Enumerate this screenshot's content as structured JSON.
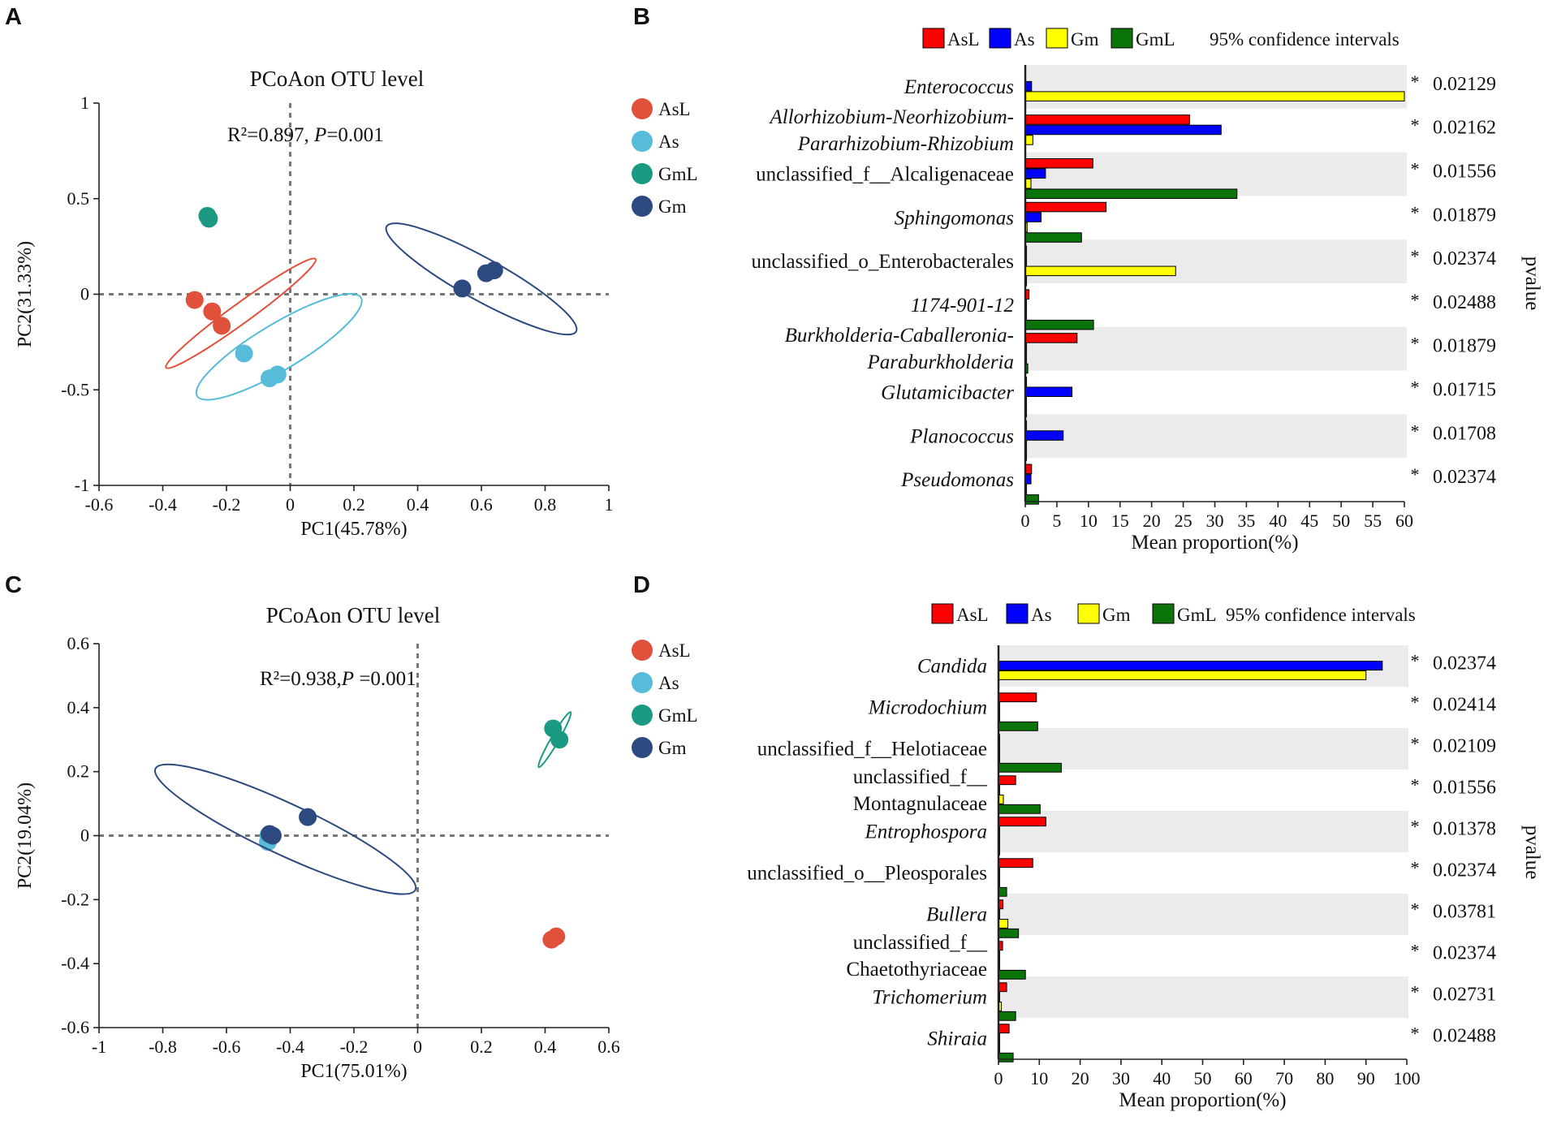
{
  "colors": {
    "AsL_scatter": "#e1503a",
    "As_scatter": "#56bcd9",
    "GmL_scatter": "#1b9a83",
    "Gm_scatter": "#2d4a80",
    "AsL_bar": "#ff0000",
    "As_bar": "#0000ff",
    "Gm_bar": "#ffff00",
    "GmL_bar": "#0a730a",
    "stripe": "#ebebeb",
    "star": "#e00000"
  },
  "panels": {
    "A": "A",
    "B": "B",
    "C": "C",
    "D": "D"
  },
  "chart_data": [
    {
      "id": "A",
      "type": "scatter",
      "title": "PCoAon OTU level",
      "annotation": {
        "r2": "R²=0.897, ",
        "p_label": "P",
        "p_value": "=0.001"
      },
      "xlabel": "PC1(45.78%)",
      "ylabel": "PC2(31.33%)",
      "xlim": [
        -0.6,
        1
      ],
      "ylim": [
        -1,
        1
      ],
      "xticks": [
        -0.6,
        -0.4,
        -0.2,
        0,
        0.2,
        0.4,
        0.6,
        0.8,
        1
      ],
      "yticks": [
        -1,
        -0.5,
        0,
        0.5,
        1
      ],
      "xtick_labels": [
        "-0.6",
        "-0.4",
        "-0.2",
        "0",
        "0.2",
        "0.4",
        "0.6",
        "0.8",
        "1"
      ],
      "ytick_labels": [
        "-1",
        "-0.5",
        "0",
        "0.5",
        "1"
      ],
      "legend": [
        "AsL",
        "As",
        "GmL",
        "Gm"
      ],
      "series": [
        {
          "name": "AsL",
          "points": [
            [
              -0.3,
              -0.03
            ],
            [
              -0.245,
              -0.09
            ],
            [
              -0.215,
              -0.165
            ]
          ],
          "ellipse": {
            "cx": -0.155,
            "cy": -0.1,
            "rx": 0.58,
            "ry": 0.026,
            "angle": -36
          }
        },
        {
          "name": "As",
          "points": [
            [
              -0.145,
              -0.31
            ],
            [
              -0.065,
              -0.44
            ],
            [
              -0.04,
              -0.42
            ]
          ],
          "ellipse": {
            "cx": -0.035,
            "cy": -0.275,
            "rx": 0.6,
            "ry": 0.06,
            "angle": -31
          }
        },
        {
          "name": "GmL",
          "points": [
            [
              -0.26,
              0.41
            ],
            [
              -0.255,
              0.395
            ]
          ],
          "ellipse": {
            "cx": -0.26,
            "cy": 0.41,
            "rx": 0.045,
            "ry": 0.015,
            "angle": -40
          }
        },
        {
          "name": "Gm",
          "points": [
            [
              0.54,
              0.03
            ],
            [
              0.615,
              0.11
            ],
            [
              0.64,
              0.125
            ]
          ],
          "ellipse": {
            "cx": 0.6,
            "cy": 0.08,
            "rx": 0.68,
            "ry": 0.055,
            "angle": 29
          }
        }
      ]
    },
    {
      "id": "B",
      "type": "bar",
      "xlabel": "Mean proportion(%)",
      "xlim": [
        0,
        60
      ],
      "xticks": [
        0,
        5,
        10,
        15,
        20,
        25,
        30,
        35,
        40,
        45,
        50,
        55,
        60
      ],
      "xtick_labels": [
        "0",
        "5",
        "10",
        "15",
        "20",
        "25",
        "30",
        "35",
        "40",
        "45",
        "50",
        "55",
        "60"
      ],
      "legend": [
        "AsL",
        "As",
        "Gm",
        "GmL"
      ],
      "legend_ci": "95% confidence intervals",
      "series_names": [
        "AsL",
        "As",
        "Gm",
        "GmL"
      ],
      "right_label": "pvalue",
      "categories": [
        {
          "lines": [
            "Enterococcus"
          ],
          "italic": true,
          "values": [
            0,
            1.0,
            60,
            0
          ],
          "p": "0.02129",
          "star": "*"
        },
        {
          "lines": [
            "Allorhizobium-Neorhizobium-",
            "Pararhizobium-Rhizobium"
          ],
          "italic": true,
          "values": [
            26,
            31,
            1.2,
            0
          ],
          "p": "0.02162",
          "star": "*"
        },
        {
          "lines": [
            "unclassified_f__Alcaligenaceae"
          ],
          "italic": false,
          "values": [
            10.7,
            3.2,
            0.9,
            33.5
          ],
          "p": "0.01556",
          "star": "*"
        },
        {
          "lines": [
            "Sphingomonas"
          ],
          "italic": true,
          "values": [
            12.8,
            2.5,
            0.3,
            8.9
          ],
          "p": "0.01879",
          "star": "*"
        },
        {
          "lines": [
            "unclassified_o_Enterobacterales"
          ],
          "italic": false,
          "values": [
            0.2,
            0.2,
            23.8,
            0.2
          ],
          "p": "0.02374",
          "star": "*"
        },
        {
          "lines": [
            "1174-901-12"
          ],
          "italic": true,
          "values": [
            0.6,
            0.2,
            0.2,
            10.8
          ],
          "p": "0.02488",
          "star": "*"
        },
        {
          "lines": [
            "Burkholderia-Caballeronia-",
            "Paraburkholderia"
          ],
          "italic": true,
          "values": [
            8.2,
            0.2,
            0.2,
            0.4
          ],
          "p": "0.01879",
          "star": "*"
        },
        {
          "lines": [
            "Glutamicibacter"
          ],
          "italic": true,
          "values": [
            0.2,
            7.4,
            0.2,
            0.2
          ],
          "p": "0.01715",
          "star": "*"
        },
        {
          "lines": [
            "Planococcus"
          ],
          "italic": true,
          "values": [
            0.2,
            6.0,
            0.2,
            0.2
          ],
          "p": "0.01708",
          "star": "*"
        },
        {
          "lines": [
            "Pseudomonas"
          ],
          "italic": true,
          "values": [
            1.0,
            0.9,
            0.2,
            2.1
          ],
          "p": "0.02374",
          "star": "*"
        }
      ]
    },
    {
      "id": "C",
      "type": "scatter",
      "title": "PCoAon OTU level",
      "annotation": {
        "r2": "R²=0.938,",
        "p_label": "P",
        "p_value": " =0.001"
      },
      "xlabel": "PC1(75.01%)",
      "ylabel": "PC2(19.04%)",
      "xlim": [
        -1,
        0.6
      ],
      "ylim": [
        -0.6,
        0.6
      ],
      "xticks": [
        -1,
        -0.8,
        -0.6,
        -0.4,
        -0.2,
        0,
        0.2,
        0.4,
        0.6
      ],
      "yticks": [
        -0.6,
        -0.4,
        -0.2,
        0,
        0.2,
        0.4,
        0.6
      ],
      "xtick_labels": [
        "-1",
        "-0.8",
        "-0.6",
        "-0.4",
        "-0.2",
        "0",
        "0.2",
        "0.4",
        "0.6"
      ],
      "ytick_labels": [
        "-0.6",
        "-0.4",
        "-0.2",
        "0",
        "0.2",
        "0.4",
        "0.6"
      ],
      "legend": [
        "AsL",
        "As",
        "GmL",
        "Gm"
      ],
      "series": [
        {
          "name": "AsL",
          "points": [
            [
              0.42,
              -0.325
            ],
            [
              0.435,
              -0.315
            ]
          ],
          "ellipse": {
            "cx": 0.43,
            "cy": -0.32,
            "rx": 0.06,
            "ry": 0.008,
            "angle": -45
          }
        },
        {
          "name": "As",
          "points": [
            [
              -0.47,
              -0.02
            ],
            [
              -0.465,
              -0.005
            ]
          ],
          "ellipse": {
            "cx": -0.47,
            "cy": 0,
            "rx": 0.05,
            "ry": 0.012,
            "angle": -85
          }
        },
        {
          "name": "GmL",
          "points": [
            [
              0.425,
              0.335
            ],
            [
              0.445,
              0.3
            ]
          ],
          "ellipse": {
            "cx": 0.43,
            "cy": 0.3,
            "rx": 0.2,
            "ry": 0.006,
            "angle": -60
          }
        },
        {
          "name": "Gm",
          "points": [
            [
              -0.465,
              0.005
            ],
            [
              -0.455,
              0.0
            ],
            [
              -0.345,
              0.058
            ]
          ],
          "ellipse": {
            "cx": -0.415,
            "cy": 0.02,
            "rx": 0.9,
            "ry": 0.04,
            "angle": 25
          }
        }
      ]
    },
    {
      "id": "D",
      "type": "bar",
      "xlabel": "Mean proportion(%)",
      "xlim": [
        0,
        100
      ],
      "xticks": [
        0,
        10,
        20,
        30,
        40,
        50,
        60,
        70,
        80,
        90,
        100
      ],
      "xtick_labels": [
        "0",
        "10",
        "20",
        "30",
        "40",
        "50",
        "60",
        "70",
        "80",
        "90",
        "100"
      ],
      "legend": [
        "AsL",
        "As",
        "Gm",
        "GmL"
      ],
      "legend_ci": "95% confidence intervals",
      "series_names": [
        "AsL",
        "As",
        "Gm",
        "GmL"
      ],
      "right_label": "pvalue",
      "categories": [
        {
          "lines": [
            "Candida"
          ],
          "italic": true,
          "values": [
            0,
            94,
            90,
            0
          ],
          "p": "0.02374",
          "star": "*"
        },
        {
          "lines": [
            "Microdochium"
          ],
          "italic": true,
          "values": [
            9.3,
            0.3,
            0.3,
            9.6
          ],
          "p": "0.02414",
          "star": "*"
        },
        {
          "lines": [
            "unclassified_f__Helotiaceae"
          ],
          "italic": false,
          "values": [
            0.3,
            0.3,
            0.3,
            15.4
          ],
          "p": "0.02109",
          "star": "*"
        },
        {
          "lines": [
            "unclassified_f__",
            "Montagnulaceae"
          ],
          "italic": false,
          "values": [
            4.2,
            0.3,
            1.2,
            10.2
          ],
          "p": "0.01556",
          "star": "*"
        },
        {
          "lines": [
            "Entrophospora"
          ],
          "italic": true,
          "values": [
            11.6,
            0.3,
            0.3,
            0.3
          ],
          "p": "0.01378",
          "star": "*"
        },
        {
          "lines": [
            "unclassified_o__Pleosporales"
          ],
          "italic": false,
          "values": [
            8.4,
            0.3,
            0.3,
            2.0
          ],
          "p": "0.02374",
          "star": "*"
        },
        {
          "lines": [
            "Bullera"
          ],
          "italic": true,
          "values": [
            1.1,
            0.3,
            2.3,
            4.9
          ],
          "p": "0.03781",
          "star": "*"
        },
        {
          "lines": [
            "unclassified_f__",
            "Chaetothyriaceae"
          ],
          "italic": false,
          "values": [
            1.0,
            0.3,
            0.3,
            6.6
          ],
          "p": "0.02374",
          "star": "*"
        },
        {
          "lines": [
            "Trichomerium"
          ],
          "italic": true,
          "values": [
            2.0,
            0.3,
            0.7,
            4.2
          ],
          "p": "0.02731",
          "star": "*"
        },
        {
          "lines": [
            "Shiraia"
          ],
          "italic": true,
          "values": [
            2.6,
            0.3,
            0.3,
            3.6
          ],
          "p": "0.02488",
          "star": "*"
        }
      ]
    }
  ]
}
